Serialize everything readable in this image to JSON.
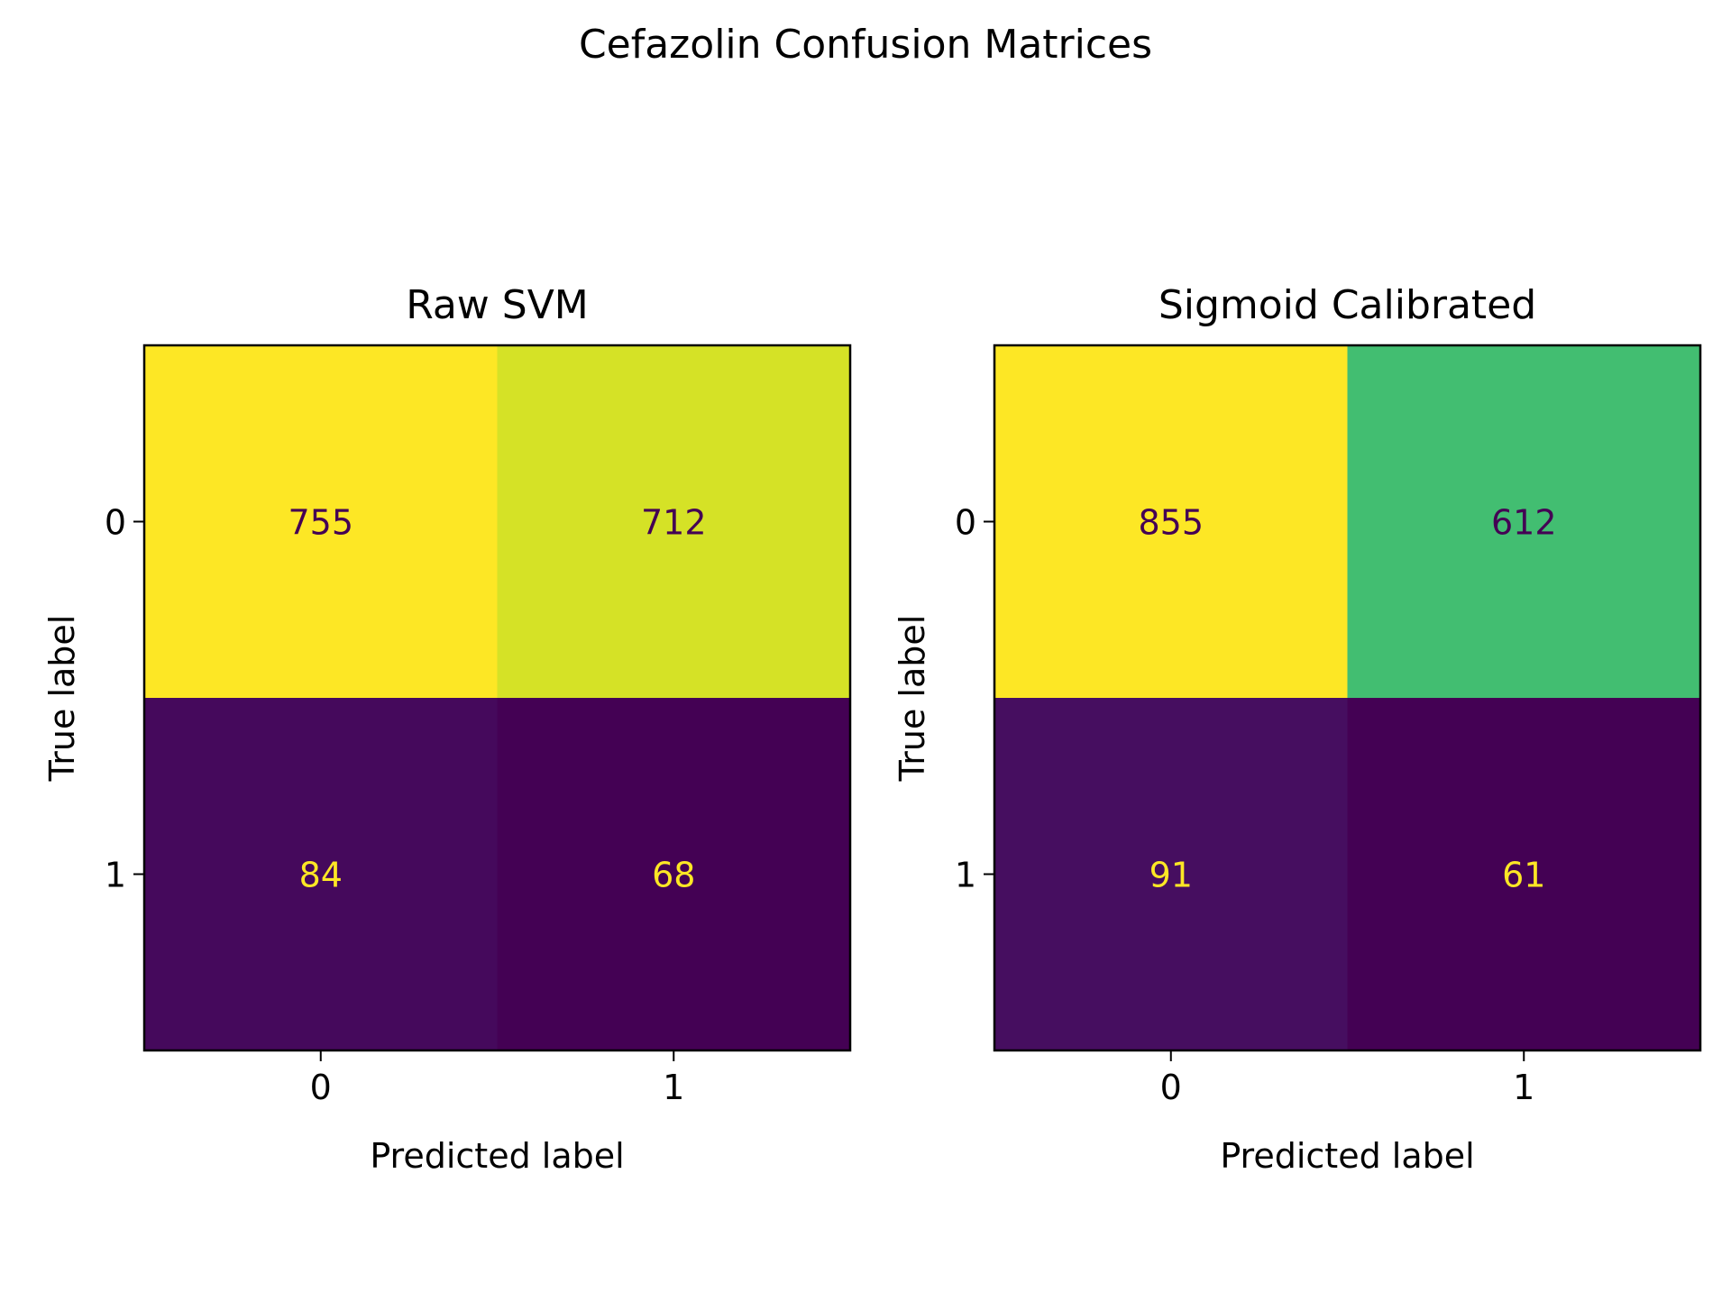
{
  "title": "Cefazolin Confusion Matrices",
  "chart_data": [
    {
      "type": "heatmap",
      "title": "Raw SVM",
      "xlabel": "Predicted label",
      "ylabel": "True label",
      "x_categories": [
        "0",
        "1"
      ],
      "y_categories": [
        "0",
        "1"
      ],
      "values": [
        [
          755,
          712
        ],
        [
          84,
          68
        ]
      ],
      "colormap": "viridis",
      "colorbar": false
    },
    {
      "type": "heatmap",
      "title": "Sigmoid Calibrated",
      "xlabel": "Predicted label",
      "ylabel": "True label",
      "x_categories": [
        "0",
        "1"
      ],
      "y_categories": [
        "0",
        "1"
      ],
      "values": [
        [
          855,
          612
        ],
        [
          91,
          61
        ]
      ],
      "colormap": "viridis",
      "colorbar": false
    }
  ],
  "colors": {
    "viridis_low": "#440154",
    "viridis_high": "#fde725",
    "text_on_dark": "#fde725",
    "text_on_light": "#440154",
    "axis": "#000000"
  }
}
